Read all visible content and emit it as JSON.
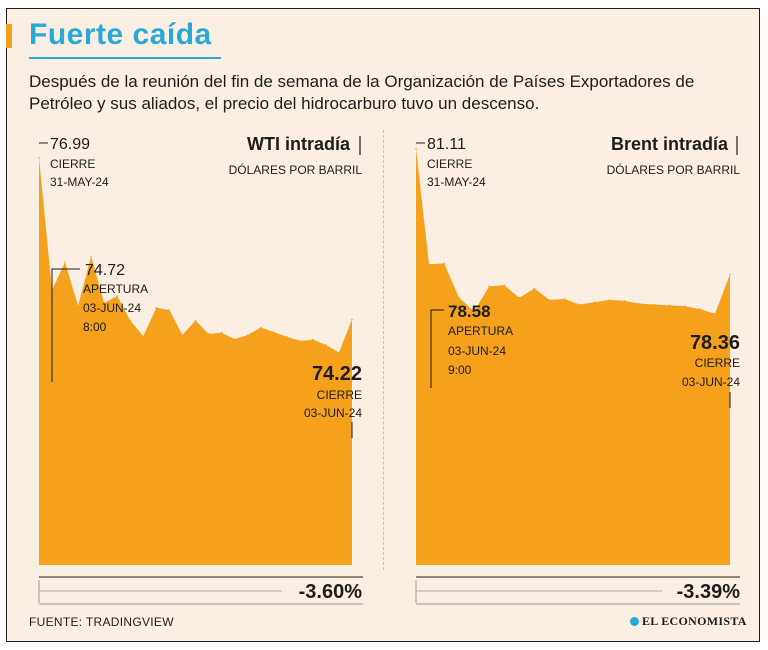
{
  "title": "Fuerte caída",
  "subtitle": "Después de la reunión del fin de semana de la Organización de Países Exportadores de Petróleo y sus aliados, el precio del hidrocarburo tuvo un descenso.",
  "source": "FUENTE: TRADINGVIEW",
  "brand": "EL ECONOMISTA",
  "colors": {
    "area": "#f5a11c",
    "accent": "#29a9d6",
    "background": "#fbefe3",
    "text": "#1d1d1b"
  },
  "chart_data": [
    {
      "type": "area",
      "title": "WTI intradía",
      "unit": "DÓLARES POR BARRIL",
      "ylim": [
        70,
        77.3
      ],
      "values": [
        76.99,
        74.72,
        75.2,
        74.45,
        75.3,
        74.5,
        74.62,
        74.2,
        73.93,
        74.42,
        74.38,
        73.95,
        74.2,
        73.97,
        73.99,
        73.88,
        73.95,
        74.08,
        74.0,
        73.92,
        73.85,
        73.87,
        73.78,
        73.65,
        74.22
      ],
      "open": {
        "value": "74.72",
        "label": "APERTURA",
        "date": "03-JUN-24",
        "time": "8:00"
      },
      "start": {
        "value": "76.99",
        "label": "CIERRE",
        "date": "31-MAY-24"
      },
      "end": {
        "value": "74.22",
        "label": "CIERRE",
        "date": "03-JUN-24"
      },
      "change": "-3.60%"
    },
    {
      "type": "area",
      "title": "Brent intradía",
      "unit": "DÓLARES POR BARRIL",
      "ylim": [
        72,
        81.3
      ],
      "values": [
        81.11,
        78.58,
        78.6,
        77.85,
        77.55,
        78.1,
        78.12,
        77.85,
        78.05,
        77.8,
        77.82,
        77.7,
        77.75,
        77.8,
        77.78,
        77.72,
        77.7,
        77.68,
        77.66,
        77.6,
        77.5,
        78.36
      ],
      "open": {
        "value": "78.58",
        "label": "APERTURA",
        "date": "03-JUN-24",
        "time": "9:00"
      },
      "start": {
        "value": "81.11",
        "label": "CIERRE",
        "date": "31-MAY-24"
      },
      "end": {
        "value": "78.36",
        "label": "CIERRE",
        "date": "03-JUN-24"
      },
      "change": "-3.39%"
    }
  ]
}
